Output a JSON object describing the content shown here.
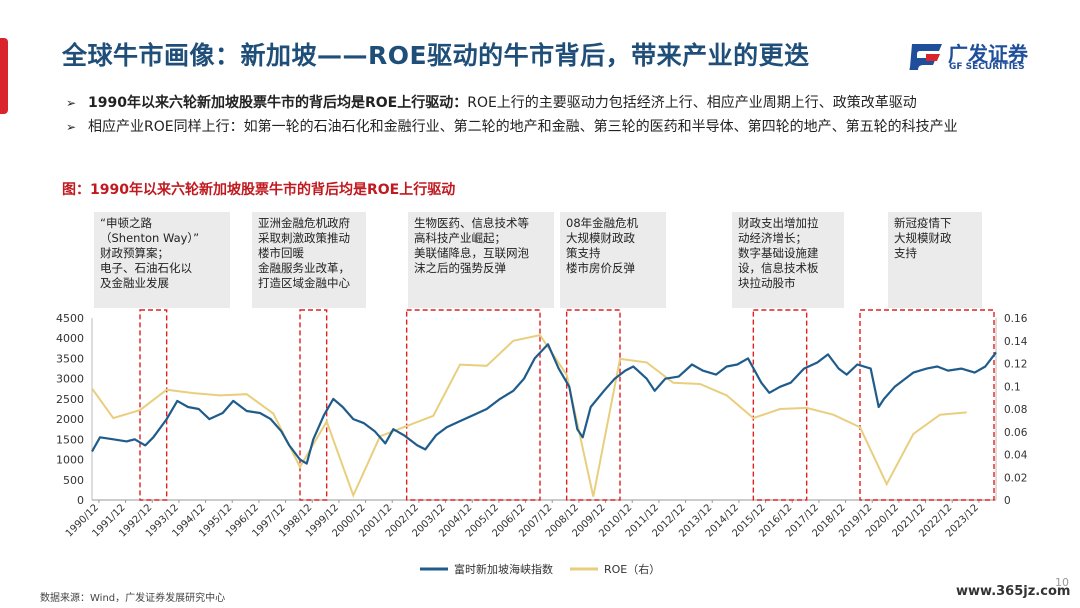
{
  "title": "全球牛市画像：新加坡——ROE驱动的牛市背后，带来产业的更迭",
  "logo": {
    "cn": "广发证券",
    "en": "GF SECURITIES"
  },
  "bullets": [
    {
      "bold": "1990年以来六轮新加坡股票牛市的背后均是ROE上行驱动：",
      "text": "ROE上行的主要驱动力包括经济上行、相应产业周期上行、政策改革驱动"
    },
    {
      "bold": "",
      "text": "相应产业ROE同样上行：如第一轮的石油石化和金融行业、第二轮的地产和金融、第三轮的医药和半导体、第四轮的地产、第五轮的科技产业"
    }
  ],
  "figure_title": "图：1990年以来六轮新加坡股票牛市的背后均是ROE上行驱动",
  "notes": [
    "“申顿之路\n（Shenton Way）”\n财政预算案；\n电子、石油石化以\n及金融业发展",
    "亚洲金融危机政府\n采取刺激政策推动\n楼市回暖\n金融服务业改革，\n打造区域金融中心",
    "生物医药、信息技术等\n高科技产业崛起；\n美联储降息，互联网泡\n沫之后的强势反弹",
    "08年金融危机\n大规模财政政\n策支持\n楼市房价反弹",
    "财政支出增加拉\n动经济增长；\n数字基础设施建\n设，信息技术板\n块拉动股市",
    "新冠疫情下\n大规模财政\n支持"
  ],
  "source": "数据来源：Wind，广发证券发展研究中心",
  "watermark": "www.365jz.com",
  "page_number": "10",
  "colors": {
    "index": "#1f5c8b",
    "roe": "#e8cf7e",
    "highlight": "#e02020",
    "title": "#1f4e79",
    "fig_title": "#c0191f"
  },
  "chart_data": {
    "type": "line",
    "x_tick_labels": [
      "1990/12",
      "1991/12",
      "1992/12",
      "1993/12",
      "1994/12",
      "1995/12",
      "1996/12",
      "1997/12",
      "1998/12",
      "1999/12",
      "2000/12",
      "2001/12",
      "2002/12",
      "2003/12",
      "2004/12",
      "2005/12",
      "2006/12",
      "2007/12",
      "2008/12",
      "2009/12",
      "2010/12",
      "2011/12",
      "2012/12",
      "2013/12",
      "2014/12",
      "2015/12",
      "2016/12",
      "2017/12",
      "2018/12",
      "2019/12",
      "2020/12",
      "2021/12",
      "2022/12",
      "2023/12"
    ],
    "x_range": [
      1990.7,
      2024.6
    ],
    "y_left": {
      "min": 0,
      "max": 4500,
      "ticks": [
        0,
        500,
        1000,
        1500,
        2000,
        2500,
        3000,
        3500,
        4000,
        4500
      ]
    },
    "y_right": {
      "min": 0,
      "max": 0.16,
      "ticks": [
        "0",
        "0.02",
        "0.04",
        "0.06",
        "0.08",
        "0.1",
        "0.12",
        "0.14",
        "0.16"
      ]
    },
    "legend": [
      "富时新加坡海峡指数",
      "ROE（右）"
    ],
    "legend_position": "bottom",
    "series": [
      {
        "name": "富时新加坡海峡指数",
        "axis": "left",
        "points": [
          [
            1990.7,
            1200
          ],
          [
            1991.0,
            1550
          ],
          [
            1991.5,
            1500
          ],
          [
            1992.0,
            1450
          ],
          [
            1992.3,
            1500
          ],
          [
            1992.7,
            1350
          ],
          [
            1993.0,
            1550
          ],
          [
            1993.5,
            2000
          ],
          [
            1993.9,
            2450
          ],
          [
            1994.3,
            2300
          ],
          [
            1994.7,
            2250
          ],
          [
            1995.1,
            2000
          ],
          [
            1995.6,
            2150
          ],
          [
            1996.0,
            2450
          ],
          [
            1996.5,
            2200
          ],
          [
            1997.0,
            2150
          ],
          [
            1997.4,
            2000
          ],
          [
            1997.8,
            1700
          ],
          [
            1998.1,
            1350
          ],
          [
            1998.5,
            1000
          ],
          [
            1998.75,
            900
          ],
          [
            1999.0,
            1500
          ],
          [
            1999.4,
            2100
          ],
          [
            1999.75,
            2500
          ],
          [
            2000.1,
            2300
          ],
          [
            2000.5,
            2000
          ],
          [
            2000.9,
            1900
          ],
          [
            2001.3,
            1700
          ],
          [
            2001.7,
            1400
          ],
          [
            2002.0,
            1750
          ],
          [
            2002.4,
            1600
          ],
          [
            2002.9,
            1350
          ],
          [
            2003.2,
            1250
          ],
          [
            2003.6,
            1600
          ],
          [
            2004.0,
            1800
          ],
          [
            2004.5,
            1950
          ],
          [
            2005.0,
            2100
          ],
          [
            2005.5,
            2250
          ],
          [
            2006.0,
            2500
          ],
          [
            2006.5,
            2700
          ],
          [
            2006.9,
            3000
          ],
          [
            2007.3,
            3500
          ],
          [
            2007.8,
            3850
          ],
          [
            2008.2,
            3250
          ],
          [
            2008.6,
            2800
          ],
          [
            2008.9,
            1750
          ],
          [
            2009.1,
            1550
          ],
          [
            2009.4,
            2300
          ],
          [
            2009.9,
            2700
          ],
          [
            2010.3,
            3000
          ],
          [
            2010.7,
            3200
          ],
          [
            2011.0,
            3300
          ],
          [
            2011.5,
            3000
          ],
          [
            2011.8,
            2700
          ],
          [
            2012.2,
            3000
          ],
          [
            2012.7,
            3050
          ],
          [
            2013.2,
            3350
          ],
          [
            2013.6,
            3200
          ],
          [
            2014.1,
            3100
          ],
          [
            2014.5,
            3300
          ],
          [
            2014.9,
            3350
          ],
          [
            2015.3,
            3500
          ],
          [
            2015.8,
            2900
          ],
          [
            2016.1,
            2650
          ],
          [
            2016.5,
            2800
          ],
          [
            2016.9,
            2900
          ],
          [
            2017.4,
            3250
          ],
          [
            2017.9,
            3400
          ],
          [
            2018.3,
            3600
          ],
          [
            2018.7,
            3250
          ],
          [
            2019.0,
            3100
          ],
          [
            2019.4,
            3350
          ],
          [
            2019.9,
            3250
          ],
          [
            2020.2,
            2300
          ],
          [
            2020.4,
            2500
          ],
          [
            2020.8,
            2800
          ],
          [
            2021.0,
            2900
          ],
          [
            2021.5,
            3150
          ],
          [
            2022.0,
            3250
          ],
          [
            2022.4,
            3300
          ],
          [
            2022.8,
            3200
          ],
          [
            2023.3,
            3250
          ],
          [
            2023.8,
            3150
          ],
          [
            2024.2,
            3300
          ],
          [
            2024.6,
            3650
          ]
        ]
      },
      {
        "name": "ROE（右）",
        "axis": "right",
        "points": [
          [
            1990.7,
            0.098
          ],
          [
            1991.5,
            0.072
          ],
          [
            1992.5,
            0.079
          ],
          [
            1993.5,
            0.097
          ],
          [
            1994.5,
            0.094
          ],
          [
            1995.5,
            0.092
          ],
          [
            1996.5,
            0.093
          ],
          [
            1997.5,
            0.076
          ],
          [
            1998.5,
            0.029
          ],
          [
            1999.5,
            0.069
          ],
          [
            2000.5,
            0.004
          ],
          [
            2001.5,
            0.056
          ],
          [
            2002.5,
            0.065
          ],
          [
            2003.5,
            0.074
          ],
          [
            2004.5,
            0.119
          ],
          [
            2005.5,
            0.118
          ],
          [
            2006.5,
            0.14
          ],
          [
            2007.5,
            0.145
          ],
          [
            2008.5,
            0.11
          ],
          [
            2009.5,
            0.003
          ],
          [
            2010.5,
            0.124
          ],
          [
            2011.5,
            0.121
          ],
          [
            2012.5,
            0.103
          ],
          [
            2013.5,
            0.102
          ],
          [
            2014.5,
            0.092
          ],
          [
            2015.5,
            0.072
          ],
          [
            2016.5,
            0.08
          ],
          [
            2017.5,
            0.081
          ],
          [
            2018.5,
            0.075
          ],
          [
            2019.5,
            0.064
          ],
          [
            2020.5,
            0.014
          ],
          [
            2021.5,
            0.058
          ],
          [
            2022.5,
            0.075
          ],
          [
            2023.5,
            0.077
          ]
        ]
      }
    ],
    "highlight_periods": [
      [
        1992.5,
        1993.5
      ],
      [
        1998.5,
        1999.5
      ],
      [
        2002.5,
        2007.5
      ],
      [
        2008.5,
        2010.5
      ],
      [
        2015.5,
        2017.5
      ],
      [
        2019.5,
        2024.8
      ]
    ]
  }
}
